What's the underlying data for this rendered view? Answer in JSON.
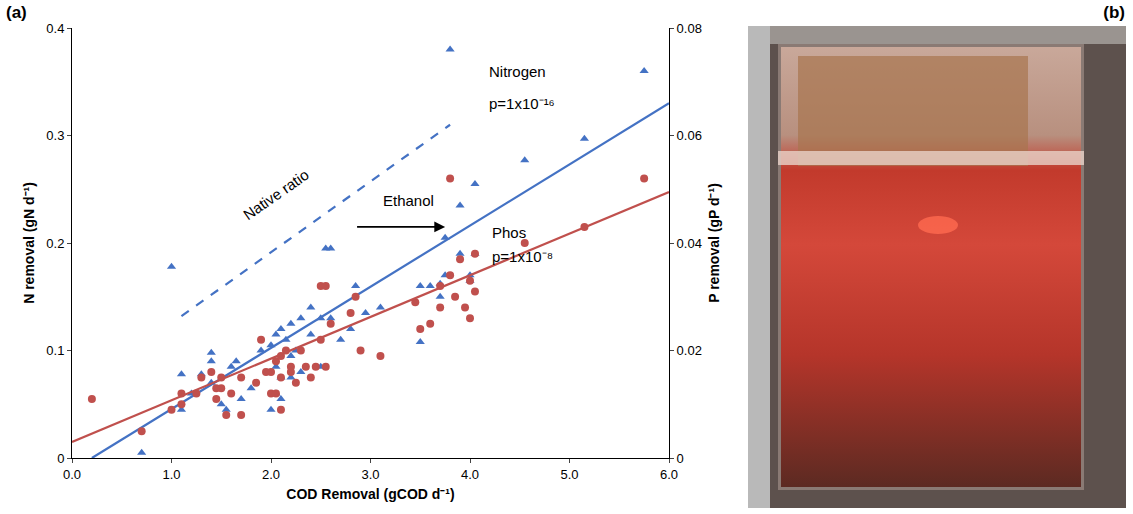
{
  "chart_data": {
    "type": "scatter",
    "panel_label": "(a)",
    "x_label": "COD Removal (gCOD d⁻¹)",
    "y_label": "N removal (gN d⁻¹)",
    "y2_label": "P removal (gP d⁻¹)",
    "xlim": [
      0,
      6
    ],
    "xticks": [
      {
        "value": 0,
        "label": "0.0"
      },
      {
        "value": 1,
        "label": "1.0"
      },
      {
        "value": 2,
        "label": "2.0"
      },
      {
        "value": 3,
        "label": "3.0"
      },
      {
        "value": 4,
        "label": "4.0"
      },
      {
        "value": 5,
        "label": "5.0"
      },
      {
        "value": 6,
        "label": "6.0"
      }
    ],
    "ylim": [
      0,
      0.4
    ],
    "yticks": [
      0,
      0.1,
      0.2,
      0.3,
      0.4
    ],
    "y2lim": [
      0,
      0.08
    ],
    "y2ticks": [
      0,
      0.02,
      0.04,
      0.06,
      0.08
    ],
    "grid": false,
    "annotations": [
      "p=1x10⁻¹⁶",
      "p=1x10⁻⁸",
      "Native ratio",
      "Ethanol"
    ],
    "series": [
      {
        "name": "Nitrogen",
        "type": "scatter",
        "marker": "triangle",
        "color": "#4472c4",
        "x": [
          0.7,
          1.0,
          1.1,
          1.1,
          1.2,
          1.3,
          1.4,
          1.4,
          1.4,
          1.5,
          1.55,
          1.6,
          1.65,
          1.7,
          1.8,
          1.9,
          2.0,
          2.0,
          2.05,
          2.05,
          2.05,
          2.1,
          2.1,
          2.1,
          2.15,
          2.2,
          2.2,
          2.2,
          2.25,
          2.3,
          2.3,
          2.4,
          2.4,
          2.5,
          2.5,
          2.55,
          2.6,
          2.6,
          2.7,
          2.8,
          2.85,
          2.95,
          3.1,
          3.5,
          3.5,
          3.6,
          3.7,
          3.7,
          3.75,
          3.75,
          3.8,
          3.9,
          3.9,
          4.0,
          4.0,
          4.05,
          4.05,
          4.55,
          5.15,
          5.75
        ],
        "values": [
          0.005,
          0.178,
          0.078,
          0.045,
          0.06,
          0.078,
          0.09,
          0.098,
          0.07,
          0.05,
          0.045,
          0.085,
          0.09,
          0.055,
          0.065,
          0.1,
          0.105,
          0.045,
          0.115,
          0.06,
          0.085,
          0.12,
          0.055,
          0.075,
          0.11,
          0.125,
          0.075,
          0.095,
          0.1,
          0.13,
          0.08,
          0.14,
          0.115,
          0.13,
          0.085,
          0.195,
          0.195,
          0.13,
          0.11,
          0.12,
          0.16,
          0.135,
          0.14,
          0.16,
          0.108,
          0.16,
          0.15,
          0.162,
          0.17,
          0.205,
          0.38,
          0.235,
          0.19,
          0.17,
          0.165,
          0.255,
          0.19,
          0.277,
          0.297,
          0.36
        ]
      },
      {
        "name": "Phos",
        "type": "scatter",
        "marker": "circle",
        "color": "#c0504d",
        "axis": "y2",
        "x": [
          0.2,
          0.7,
          1.0,
          1.1,
          1.1,
          1.25,
          1.3,
          1.4,
          1.45,
          1.45,
          1.5,
          1.5,
          1.55,
          1.6,
          1.7,
          1.7,
          1.85,
          1.9,
          1.95,
          2.0,
          2.0,
          2.05,
          2.05,
          2.1,
          2.1,
          2.1,
          2.15,
          2.2,
          2.2,
          2.25,
          2.3,
          2.35,
          2.4,
          2.45,
          2.5,
          2.5,
          2.55,
          2.55,
          2.6,
          2.8,
          2.85,
          2.9,
          3.1,
          3.45,
          3.5,
          3.6,
          3.7,
          3.7,
          3.8,
          3.8,
          3.85,
          3.9,
          3.95,
          4.0,
          4.0,
          4.05,
          4.05,
          4.55,
          5.15,
          5.75
        ],
        "values": [
          0.011,
          0.005,
          0.009,
          0.012,
          0.01,
          0.012,
          0.015,
          0.016,
          0.011,
          0.013,
          0.015,
          0.013,
          0.008,
          0.012,
          0.008,
          0.015,
          0.014,
          0.022,
          0.016,
          0.016,
          0.012,
          0.012,
          0.018,
          0.019,
          0.015,
          0.009,
          0.02,
          0.016,
          0.017,
          0.014,
          0.02,
          0.017,
          0.015,
          0.017,
          0.022,
          0.032,
          0.032,
          0.017,
          0.025,
          0.027,
          0.03,
          0.02,
          0.019,
          0.029,
          0.024,
          0.025,
          0.028,
          0.032,
          0.052,
          0.034,
          0.03,
          0.037,
          0.028,
          0.026,
          0.033,
          0.031,
          0.038,
          0.04,
          0.043,
          0.052
        ]
      },
      {
        "type": "line",
        "line_style": "solid",
        "color": "#4472c4",
        "x": [
          0.2,
          6.0
        ],
        "values": [
          0,
          0.33
        ]
      },
      {
        "type": "line",
        "line_style": "solid",
        "color": "#c0504d",
        "axis": "y2",
        "x": [
          0,
          6.0
        ],
        "values": [
          0.003,
          0.0495
        ]
      },
      {
        "type": "line",
        "line_style": "dashed",
        "color": "#4472c4",
        "x": [
          1.1,
          3.8
        ],
        "values": [
          0.132,
          0.31
        ]
      }
    ]
  },
  "photo": {
    "panel_label": "(b)"
  }
}
